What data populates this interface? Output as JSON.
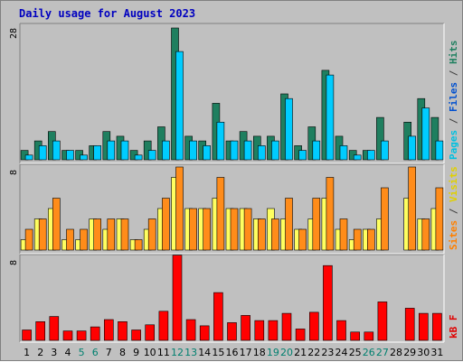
{
  "chart_data": {
    "type": "bar",
    "title": "Daily usage for August 2023",
    "categories": [
      "1",
      "2",
      "3",
      "4",
      "5",
      "6",
      "7",
      "8",
      "9",
      "10",
      "11",
      "12",
      "13",
      "14",
      "15",
      "16",
      "17",
      "18",
      "19",
      "20",
      "21",
      "22",
      "23",
      "24",
      "25",
      "26",
      "27",
      "28",
      "29",
      "30",
      "31"
    ],
    "weekend_days": [
      "5",
      "6",
      "12",
      "13",
      "19",
      "20",
      "26",
      "27"
    ],
    "panels": [
      {
        "name": "hits-files",
        "max_label": "28",
        "ylim": [
          0,
          28
        ],
        "legend": [
          {
            "text": "Pages",
            "color": "#00c0e0"
          },
          {
            "text": " / ",
            "color": "#404040"
          },
          {
            "text": "Files",
            "color": "#0050d0"
          },
          {
            "text": " / ",
            "color": "#404040"
          },
          {
            "text": "Hits",
            "color": "#208060"
          }
        ],
        "series": [
          {
            "name": "Hits",
            "color": "#1f7f5f",
            "values": [
              2,
              4,
              6,
              2,
              2,
              3,
              6,
              5,
              2,
              4,
              7,
              28,
              5,
              4,
              12,
              4,
              6,
              5,
              5,
              14,
              3,
              7,
              19,
              5,
              2,
              2,
              9,
              0,
              8,
              13,
              9
            ]
          },
          {
            "name": "Files",
            "color": "#00ccff",
            "values": [
              1,
              3,
              4,
              2,
              1,
              3,
              4,
              4,
              1,
              2,
              4,
              23,
              4,
              3,
              8,
              4,
              4,
              3,
              4,
              13,
              2,
              4,
              18,
              3,
              1,
              2,
              4,
              0,
              5,
              11,
              4
            ]
          }
        ]
      },
      {
        "name": "sites-visits",
        "max_label": "8",
        "ylim": [
          0,
          8
        ],
        "legend": [
          {
            "text": "Sites",
            "color": "#ff8000"
          },
          {
            "text": " / ",
            "color": "#404040"
          },
          {
            "text": "Visits",
            "color": "#e0d000"
          }
        ],
        "series": [
          {
            "name": "Visits",
            "color": "#ffff60",
            "values": [
              1,
              3,
              4,
              1,
              1,
              3,
              2,
              3,
              1,
              2,
              4,
              7,
              4,
              4,
              5,
              4,
              4,
              3,
              4,
              3,
              2,
              3,
              5,
              2,
              1,
              2,
              3,
              0,
              5,
              3,
              4
            ]
          },
          {
            "name": "Sites",
            "color": "#ff8c1a",
            "values": [
              2,
              3,
              5,
              2,
              2,
              3,
              3,
              3,
              1,
              3,
              5,
              8,
              4,
              4,
              7,
              4,
              4,
              3,
              3,
              5,
              2,
              5,
              7,
              3,
              2,
              2,
              6,
              0,
              8,
              3,
              6
            ]
          }
        ]
      },
      {
        "name": "kbytes",
        "max_label": "8",
        "ylim": [
          0,
          8
        ],
        "legend": [
          {
            "text": "kB F",
            "color": "#e00000"
          }
        ],
        "series": [
          {
            "name": "kB F",
            "color": "#ff0000",
            "values": [
              1,
              1.8,
              2.3,
              0.9,
              0.9,
              1.3,
              2,
              1.8,
              1,
              1.5,
              2.8,
              8.2,
              2,
              1.4,
              4.6,
              1.7,
              2.4,
              1.9,
              1.9,
              2.6,
              1.1,
              2.7,
              7.2,
              1.9,
              0.8,
              0.8,
              3.7,
              0,
              3.1,
              2.6,
              2.6
            ]
          }
        ]
      }
    ],
    "grid": false
  }
}
